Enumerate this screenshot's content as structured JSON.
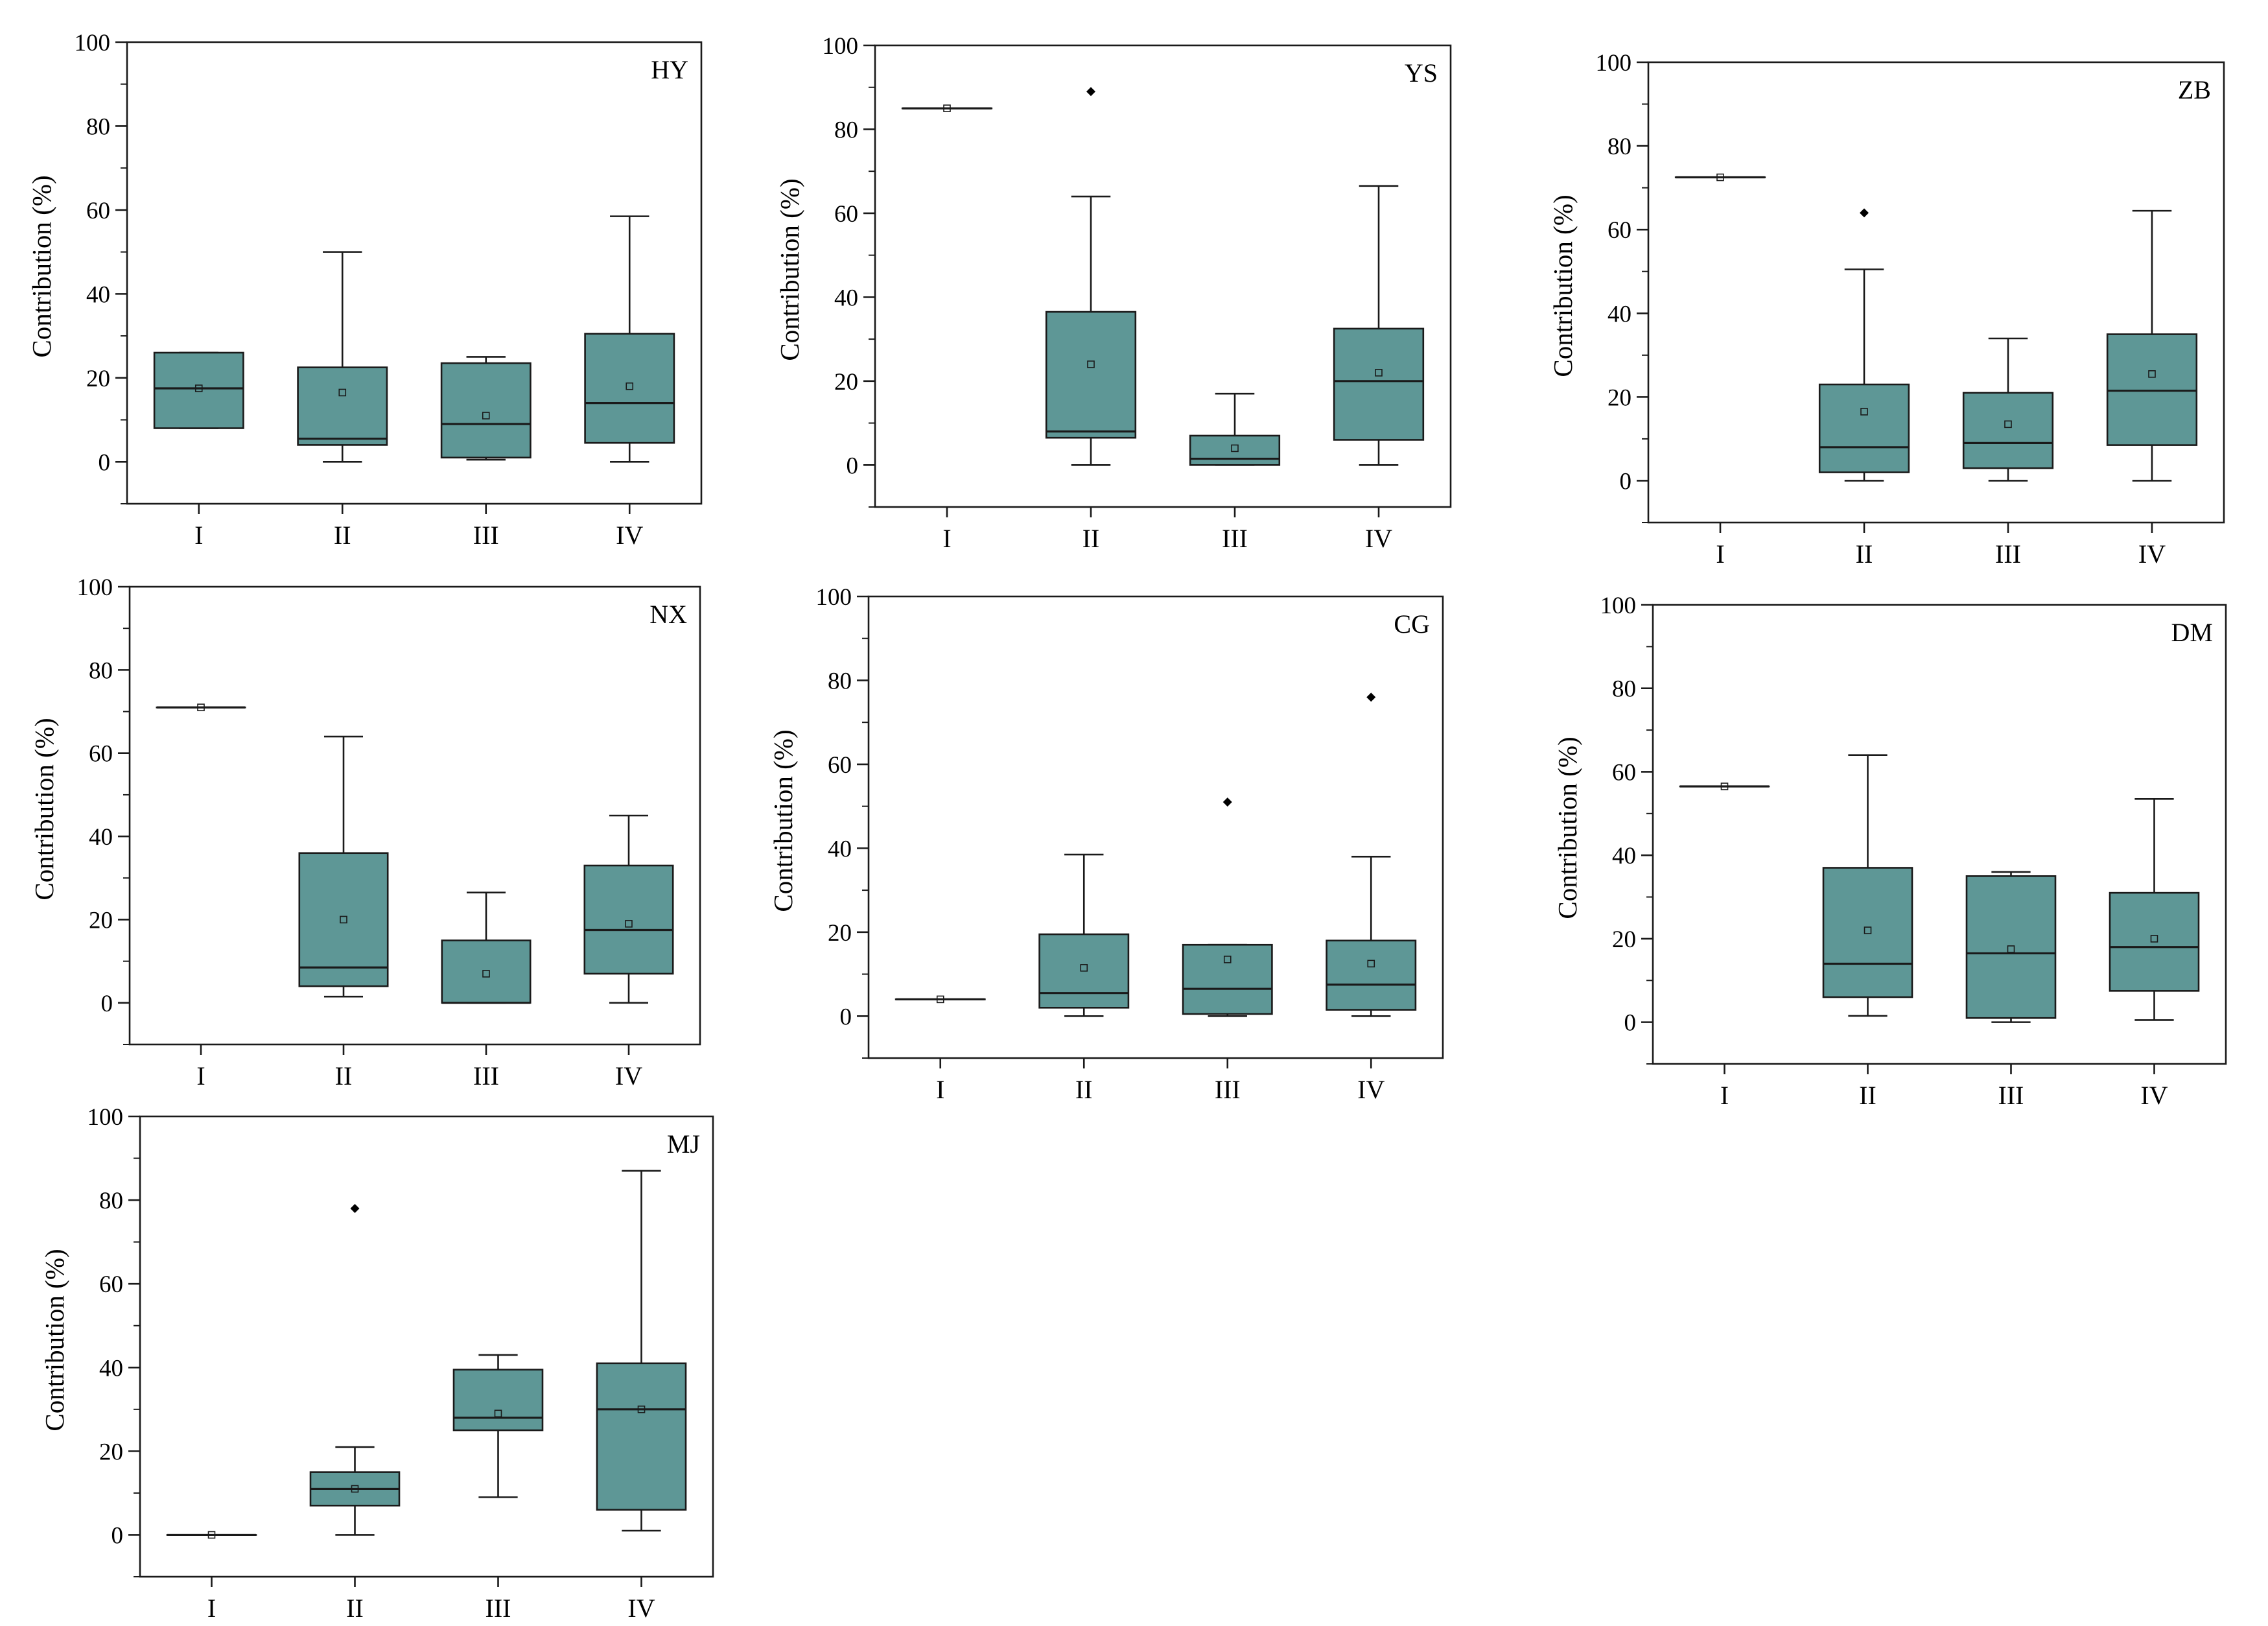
{
  "figure": {
    "ylabel": "Contribution  (%)",
    "categories": [
      "I",
      "II",
      "III",
      "IV"
    ],
    "yticks": [
      0,
      20,
      40,
      60,
      80,
      100
    ],
    "ylim": [
      -10,
      100
    ],
    "box_color": "#5e9796",
    "edge_color": "#1a1a1a"
  },
  "chart_data": [
    {
      "type": "box",
      "title": "HY",
      "series": [
        {
          "category": "I",
          "min": 8,
          "q1": 8,
          "median": 17.5,
          "q3": 26,
          "max": 26,
          "mean": 17.5,
          "outliers": []
        },
        {
          "category": "II",
          "min": 0,
          "q1": 4,
          "median": 5.5,
          "q3": 22.5,
          "max": 50,
          "mean": 16.5,
          "outliers": []
        },
        {
          "category": "III",
          "min": 0.5,
          "q1": 1,
          "median": 9,
          "q3": 23.5,
          "max": 25,
          "mean": 11,
          "outliers": []
        },
        {
          "category": "IV",
          "min": 0,
          "q1": 4.5,
          "median": 14,
          "q3": 30.5,
          "max": 58.5,
          "mean": 18,
          "outliers": []
        }
      ]
    },
    {
      "type": "box",
      "title": "YS",
      "series": [
        {
          "category": "I",
          "min": 85,
          "q1": 85,
          "median": 85,
          "q3": 85,
          "max": 85,
          "mean": 85,
          "outliers": []
        },
        {
          "category": "II",
          "min": 0,
          "q1": 6.5,
          "median": 8,
          "q3": 36.5,
          "max": 64,
          "mean": 24,
          "outliers": [
            89
          ]
        },
        {
          "category": "III",
          "min": 0,
          "q1": 0,
          "median": 1.5,
          "q3": 7,
          "max": 17,
          "mean": 4,
          "outliers": []
        },
        {
          "category": "IV",
          "min": 0,
          "q1": 6,
          "median": 20,
          "q3": 32.5,
          "max": 66.5,
          "mean": 22,
          "outliers": []
        }
      ]
    },
    {
      "type": "box",
      "title": "ZB",
      "series": [
        {
          "category": "I",
          "min": 72.5,
          "q1": 72.5,
          "median": 72.5,
          "q3": 72.5,
          "max": 72.5,
          "mean": 72.5,
          "outliers": []
        },
        {
          "category": "II",
          "min": 0,
          "q1": 2,
          "median": 8,
          "q3": 23,
          "max": 50.5,
          "mean": 16.5,
          "outliers": [
            64
          ]
        },
        {
          "category": "III",
          "min": 0,
          "q1": 3,
          "median": 9,
          "q3": 21,
          "max": 34,
          "mean": 13.5,
          "outliers": []
        },
        {
          "category": "IV",
          "min": 0,
          "q1": 8.5,
          "median": 21.5,
          "q3": 35,
          "max": 64.5,
          "mean": 25.5,
          "outliers": []
        }
      ]
    },
    {
      "type": "box",
      "title": "NX",
      "series": [
        {
          "category": "I",
          "min": 71,
          "q1": 71,
          "median": 71,
          "q3": 71,
          "max": 71,
          "mean": 71,
          "outliers": []
        },
        {
          "category": "II",
          "min": 1.5,
          "q1": 4,
          "median": 8.5,
          "q3": 36,
          "max": 64,
          "mean": 20,
          "outliers": []
        },
        {
          "category": "III",
          "min": 0,
          "q1": 0,
          "median": 0,
          "q3": 15,
          "max": 26.5,
          "mean": 7,
          "outliers": []
        },
        {
          "category": "IV",
          "min": 0,
          "q1": 7,
          "median": 17.5,
          "q3": 33,
          "max": 45,
          "mean": 19,
          "outliers": []
        }
      ]
    },
    {
      "type": "box",
      "title": "CG",
      "series": [
        {
          "category": "I",
          "min": 4,
          "q1": 4,
          "median": 4,
          "q3": 4,
          "max": 4,
          "mean": 4,
          "outliers": []
        },
        {
          "category": "II",
          "min": 0,
          "q1": 2,
          "median": 5.5,
          "q3": 19.5,
          "max": 38.5,
          "mean": 11.5,
          "outliers": []
        },
        {
          "category": "III",
          "min": 0,
          "q1": 0.5,
          "median": 6.5,
          "q3": 17,
          "max": 17,
          "mean": 13.5,
          "outliers": [
            51
          ]
        },
        {
          "category": "IV",
          "min": 0,
          "q1": 1.5,
          "median": 7.5,
          "q3": 18,
          "max": 38,
          "mean": 12.5,
          "outliers": [
            76
          ]
        }
      ]
    },
    {
      "type": "box",
      "title": "DM",
      "series": [
        {
          "category": "I",
          "min": 56.5,
          "q1": 56.5,
          "median": 56.5,
          "q3": 56.5,
          "max": 56.5,
          "mean": 56.5,
          "outliers": []
        },
        {
          "category": "II",
          "min": 1.5,
          "q1": 6,
          "median": 14,
          "q3": 37,
          "max": 64,
          "mean": 22,
          "outliers": []
        },
        {
          "category": "III",
          "min": 0,
          "q1": 1,
          "median": 16.5,
          "q3": 35,
          "max": 36,
          "mean": 17.5,
          "outliers": []
        },
        {
          "category": "IV",
          "min": 0.5,
          "q1": 7.5,
          "median": 18,
          "q3": 31,
          "max": 53.5,
          "mean": 20,
          "outliers": []
        }
      ]
    },
    {
      "type": "box",
      "title": "MJ",
      "series": [
        {
          "category": "I",
          "min": 0,
          "q1": 0,
          "median": 0,
          "q3": 0,
          "max": 0,
          "mean": 0,
          "outliers": []
        },
        {
          "category": "II",
          "min": 0,
          "q1": 7,
          "median": 11,
          "q3": 15,
          "max": 21,
          "mean": 11,
          "outliers": [
            78
          ]
        },
        {
          "category": "III",
          "min": 9,
          "q1": 25,
          "median": 28,
          "q3": 39.5,
          "max": 43,
          "mean": 29,
          "outliers": []
        },
        {
          "category": "IV",
          "min": 1,
          "q1": 6,
          "median": 30,
          "q3": 41,
          "max": 87,
          "mean": 30,
          "outliers": []
        }
      ]
    }
  ]
}
